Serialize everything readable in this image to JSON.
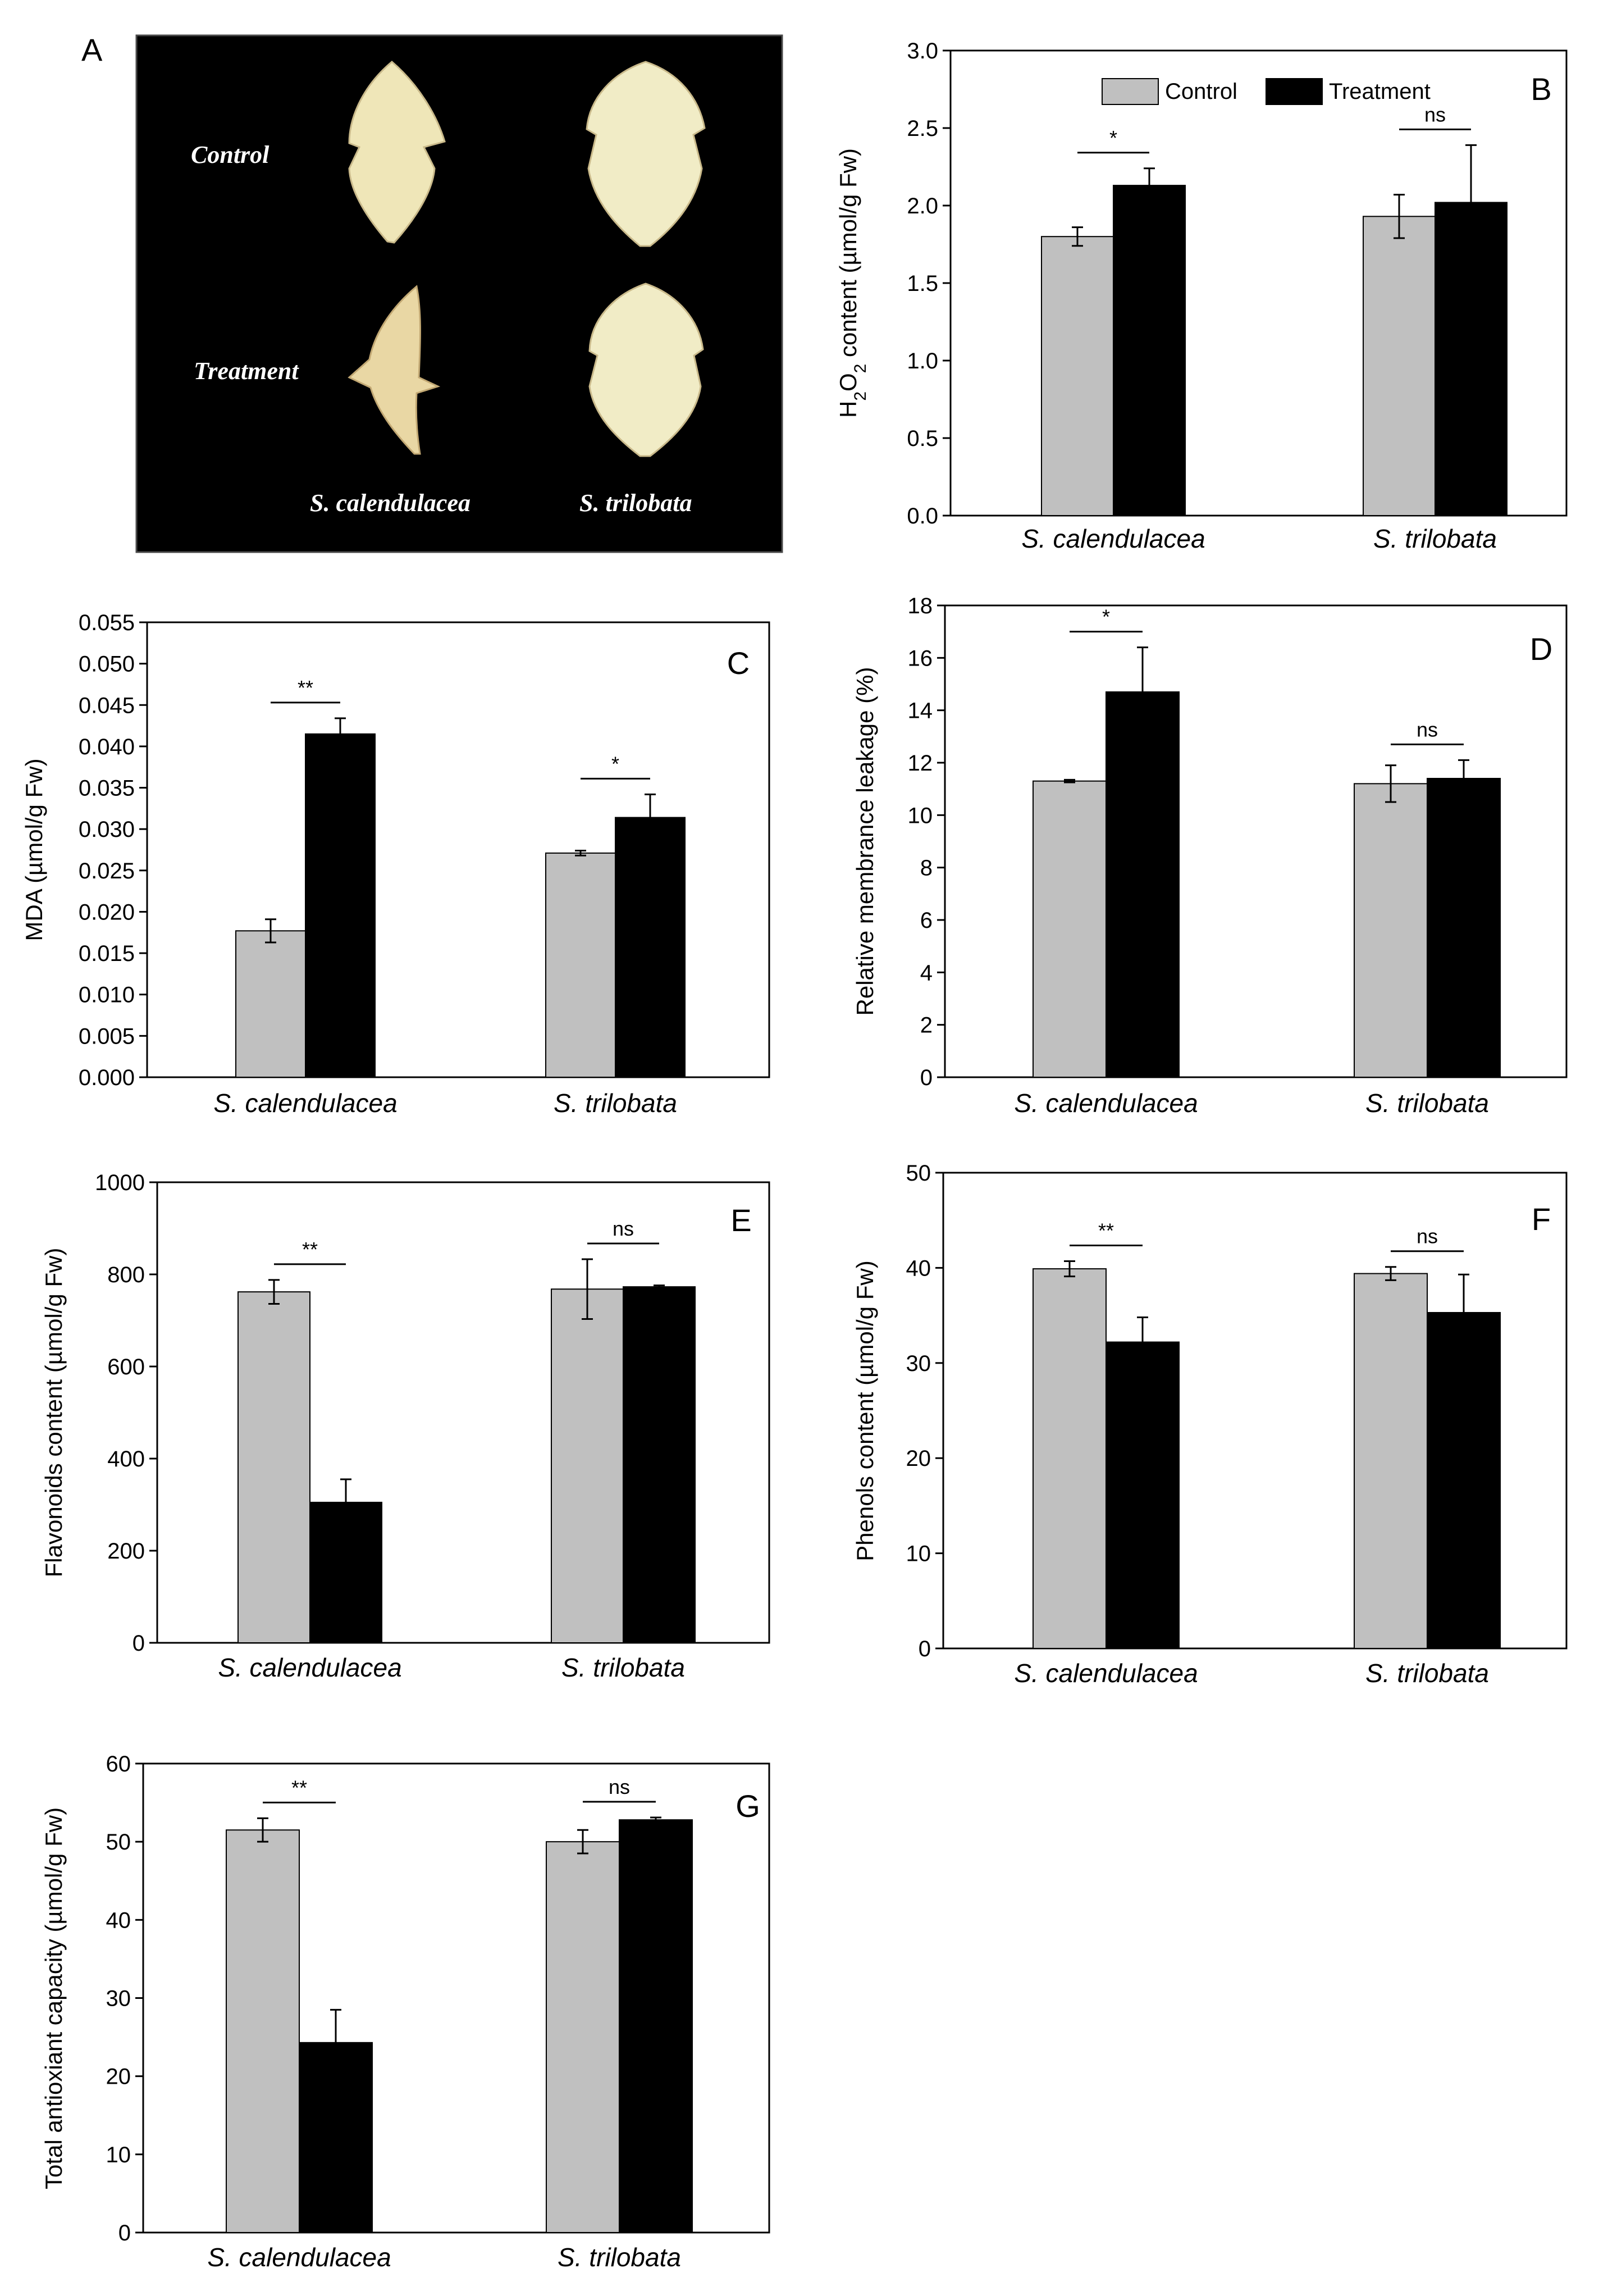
{
  "figure": {
    "photo_panel": {
      "letter": "A",
      "row_labels": [
        "Control",
        "Treatment"
      ],
      "species_labels": [
        "S. calendulacea",
        "S. trilobata"
      ]
    },
    "legend": {
      "control": "Control",
      "treatment": "Treatment"
    },
    "colors": {
      "control": "#c0c0c0",
      "treatment": "#000000",
      "photo_bg": "#000000",
      "leaf": "#efe6b8"
    }
  },
  "chart_data": [
    {
      "panel": "B",
      "type": "bar",
      "ylabel_parts": [
        "H",
        "2",
        "O",
        "2",
        " content (µmol/g Fw)"
      ],
      "categories": [
        "S. calendulacea",
        "S. trilobata"
      ],
      "ylim": [
        0,
        3.0
      ],
      "yticks": [
        "0.0",
        "0.5",
        "1.0",
        "1.5",
        "2.0",
        "2.5",
        "3.0"
      ],
      "series": [
        {
          "name": "Control",
          "values": [
            1.8,
            1.93
          ],
          "errors": [
            0.06,
            0.14
          ]
        },
        {
          "name": "Treatment",
          "values": [
            2.13,
            2.02
          ],
          "errors": [
            0.11,
            0.37
          ]
        }
      ],
      "significance": [
        "*",
        "ns"
      ],
      "legend": true
    },
    {
      "panel": "C",
      "type": "bar",
      "ylabel": "MDA (µmol/g Fw)",
      "categories": [
        "S. calendulacea",
        "S. trilobata"
      ],
      "ylim": [
        0,
        0.055
      ],
      "yticks": [
        "0.000",
        "0.005",
        "0.010",
        "0.015",
        "0.020",
        "0.025",
        "0.030",
        "0.035",
        "0.040",
        "0.045",
        "0.050",
        "0.055"
      ],
      "series": [
        {
          "name": "Control",
          "values": [
            0.0177,
            0.0271
          ],
          "errors": [
            0.0014,
            0.0003
          ]
        },
        {
          "name": "Treatment",
          "values": [
            0.0415,
            0.0314
          ],
          "errors": [
            0.0019,
            0.0028
          ]
        }
      ],
      "significance": [
        "**",
        "*"
      ]
    },
    {
      "panel": "D",
      "type": "bar",
      "ylabel": "Relative membrance leakage (%)",
      "categories": [
        "S. calendulacea",
        "S. trilobata"
      ],
      "ylim": [
        0,
        18
      ],
      "yticks": [
        "0",
        "2",
        "4",
        "6",
        "8",
        "10",
        "12",
        "14",
        "16",
        "18"
      ],
      "series": [
        {
          "name": "Control",
          "values": [
            11.3,
            11.2
          ],
          "errors": [
            0.05,
            0.7
          ]
        },
        {
          "name": "Treatment",
          "values": [
            14.7,
            11.4
          ],
          "errors": [
            1.7,
            0.7
          ]
        }
      ],
      "significance": [
        "*",
        "ns"
      ]
    },
    {
      "panel": "E",
      "type": "bar",
      "ylabel": "Flavonoids content (µmol/g Fw)",
      "categories": [
        "S. calendulacea",
        "S. trilobata"
      ],
      "ylim": [
        0,
        1000
      ],
      "yticks": [
        "0",
        "200",
        "400",
        "600",
        "800",
        "1000"
      ],
      "series": [
        {
          "name": "Control",
          "values": [
            762,
            768
          ],
          "errors": [
            26,
            65
          ]
        },
        {
          "name": "Treatment",
          "values": [
            305,
            773
          ],
          "errors": [
            50,
            3
          ]
        }
      ],
      "significance": [
        "**",
        "ns"
      ]
    },
    {
      "panel": "F",
      "type": "bar",
      "ylabel": "Phenols content (µmol/g Fw)",
      "categories": [
        "S. calendulacea",
        "S. trilobata"
      ],
      "ylim": [
        0,
        50
      ],
      "yticks": [
        "0",
        "10",
        "20",
        "30",
        "40",
        "50"
      ],
      "series": [
        {
          "name": "Control",
          "values": [
            39.9,
            39.4
          ],
          "errors": [
            0.8,
            0.7
          ]
        },
        {
          "name": "Treatment",
          "values": [
            32.2,
            35.3
          ],
          "errors": [
            2.6,
            4.0
          ]
        }
      ],
      "significance": [
        "**",
        "ns"
      ]
    },
    {
      "panel": "G",
      "type": "bar",
      "ylabel": "Total antioxiant capacity (µmol/g Fw)",
      "categories": [
        "S. calendulacea",
        "S. trilobata"
      ],
      "ylim": [
        0,
        60
      ],
      "yticks": [
        "0",
        "10",
        "20",
        "30",
        "40",
        "50",
        "60"
      ],
      "series": [
        {
          "name": "Control",
          "values": [
            51.5,
            50.0
          ],
          "errors": [
            1.5,
            1.5
          ]
        },
        {
          "name": "Treatment",
          "values": [
            24.3,
            52.8
          ],
          "errors": [
            4.2,
            0.3
          ]
        }
      ],
      "significance": [
        "**",
        "ns"
      ]
    }
  ]
}
